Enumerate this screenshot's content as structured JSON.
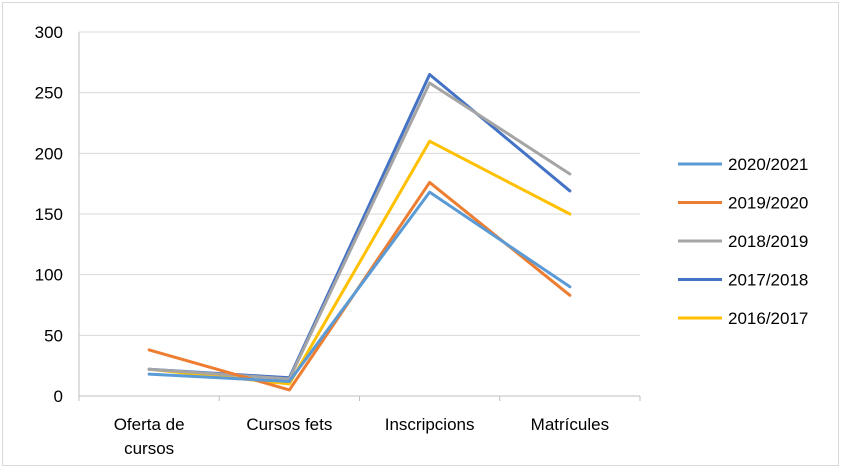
{
  "chart_data": {
    "type": "line",
    "title": "",
    "xlabel": "",
    "ylabel": "",
    "categories": [
      [
        "Oferta de",
        "cursos"
      ],
      [
        "Cursos fets"
      ],
      [
        "Inscripcions"
      ],
      [
        "Matrícules"
      ]
    ],
    "ylim": [
      0,
      300
    ],
    "yticks": [
      0,
      50,
      100,
      150,
      200,
      250,
      300
    ],
    "grid": true,
    "legend_position": "right",
    "series": [
      {
        "name": "2016/2017",
        "color": "#FFC000",
        "values": [
          22,
          10,
          210,
          150
        ]
      },
      {
        "name": "2017/2018",
        "color": "#4472C4",
        "values": [
          22,
          15,
          265,
          169
        ]
      },
      {
        "name": "2018/2019",
        "color": "#A5A5A5",
        "values": [
          22,
          14,
          258,
          183
        ]
      },
      {
        "name": "2019/2020",
        "color": "#ED7D31",
        "values": [
          38,
          5,
          176,
          83
        ]
      },
      {
        "name": "2020/2021",
        "color": "#5B9BD5",
        "values": [
          18,
          12,
          168,
          90
        ]
      }
    ],
    "legend_order": [
      "2020/2021",
      "2019/2020",
      "2018/2019",
      "2017/2018",
      "2016/2017"
    ]
  }
}
